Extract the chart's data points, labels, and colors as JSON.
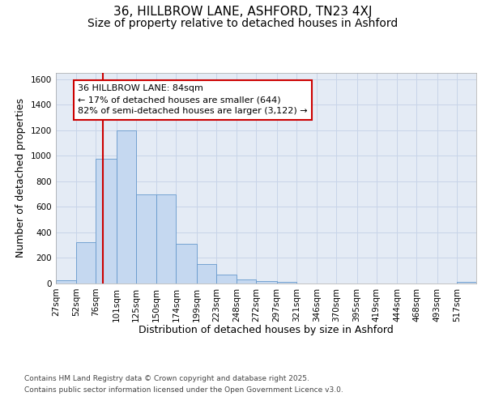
{
  "title_line1": "36, HILLBROW LANE, ASHFORD, TN23 4XJ",
  "title_line2": "Size of property relative to detached houses in Ashford",
  "xlabel": "Distribution of detached houses by size in Ashford",
  "ylabel": "Number of detached properties",
  "bin_labels": [
    "27sqm",
    "52sqm",
    "76sqm",
    "101sqm",
    "125sqm",
    "150sqm",
    "174sqm",
    "199sqm",
    "223sqm",
    "248sqm",
    "272sqm",
    "297sqm",
    "321sqm",
    "346sqm",
    "370sqm",
    "395sqm",
    "419sqm",
    "444sqm",
    "468sqm",
    "493sqm",
    "517sqm"
  ],
  "bin_edges": [
    27,
    52,
    76,
    101,
    125,
    150,
    174,
    199,
    223,
    248,
    272,
    297,
    321,
    346,
    370,
    395,
    419,
    444,
    468,
    493,
    517,
    541
  ],
  "bar_heights": [
    25,
    325,
    975,
    1200,
    700,
    700,
    310,
    155,
    70,
    30,
    20,
    15,
    0,
    0,
    0,
    0,
    0,
    0,
    0,
    0,
    15
  ],
  "bar_color": "#c5d8f0",
  "bar_edge_color": "#6699cc",
  "vline_x": 84,
  "vline_color": "#cc0000",
  "annotation_text": "36 HILLBROW LANE: 84sqm\n← 17% of detached houses are smaller (644)\n82% of semi-detached houses are larger (3,122) →",
  "annotation_box_color": "#cc0000",
  "annotation_box_bg": "#ffffff",
  "ylim": [
    0,
    1650
  ],
  "yticks": [
    0,
    200,
    400,
    600,
    800,
    1000,
    1200,
    1400,
    1600
  ],
  "grid_color": "#c8d4e8",
  "bg_color": "#ffffff",
  "plot_bg_color": "#e4ebf5",
  "footer_line1": "Contains HM Land Registry data © Crown copyright and database right 2025.",
  "footer_line2": "Contains public sector information licensed under the Open Government Licence v3.0.",
  "title_fontsize": 11,
  "subtitle_fontsize": 10,
  "axis_label_fontsize": 9,
  "tick_fontsize": 7.5,
  "annotation_fontsize": 8,
  "footer_fontsize": 6.5
}
